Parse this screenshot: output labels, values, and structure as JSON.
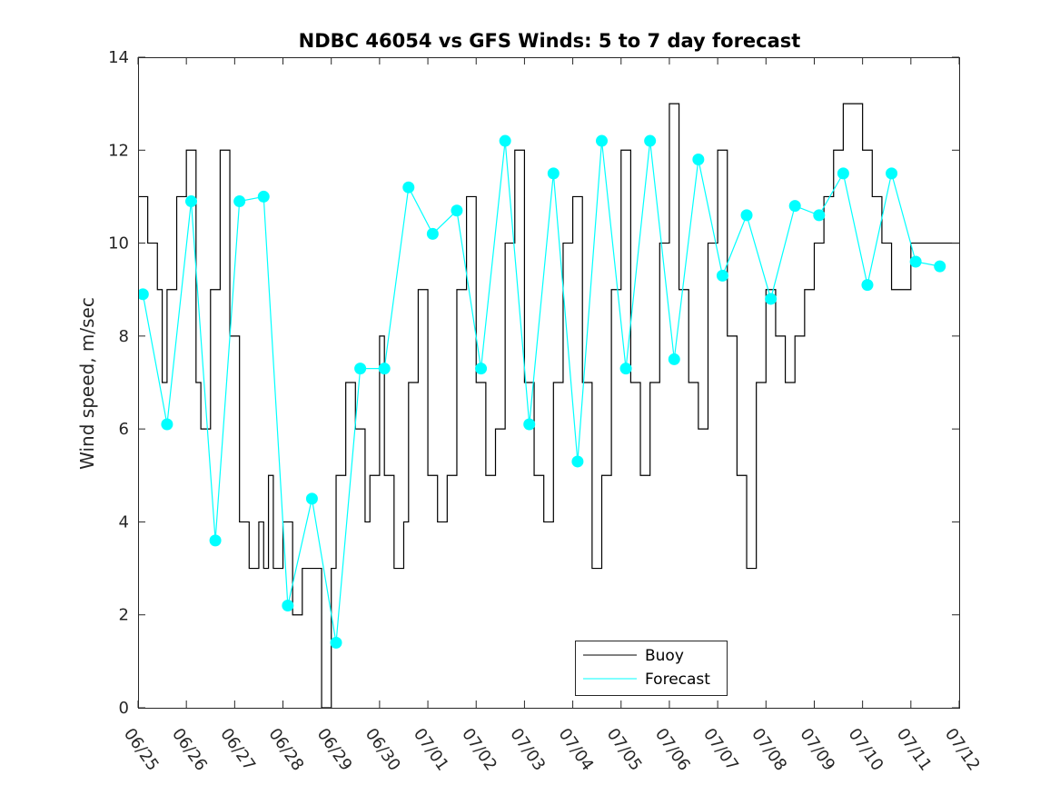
{
  "chart_data": {
    "type": "line",
    "title": "NDBC 46054 vs GFS Winds: 5 to 7 day forecast",
    "xlabel": "",
    "ylabel": "Wind speed, m/sec",
    "x_ticks": [
      "06/25",
      "06/26",
      "06/27",
      "06/28",
      "06/29",
      "06/30",
      "07/01",
      "07/02",
      "07/03",
      "07/04",
      "07/05",
      "07/06",
      "07/07",
      "07/08",
      "07/09",
      "07/10",
      "07/11",
      "07/12"
    ],
    "ylim": [
      0,
      14
    ],
    "y_ticks": [
      0,
      2,
      4,
      6,
      8,
      10,
      12,
      14
    ],
    "grid": false,
    "legend_position": "bottom-center",
    "series": [
      {
        "name": "Buoy",
        "color": "#000000",
        "x_days": [
          0,
          0.2,
          0.4,
          0.5,
          0.6,
          0.8,
          1.0,
          1.2,
          1.3,
          1.5,
          1.7,
          1.9,
          2.1,
          2.3,
          2.5,
          2.6,
          2.7,
          2.8,
          3.0,
          3.2,
          3.4,
          3.6,
          3.8,
          4.0,
          4.1,
          4.3,
          4.5,
          4.7,
          4.8,
          5.0,
          5.1,
          5.3,
          5.5,
          5.6,
          5.8,
          6.0,
          6.2,
          6.4,
          6.6,
          6.8,
          7.0,
          7.2,
          7.4,
          7.6,
          7.8,
          8.0,
          8.2,
          8.4,
          8.6,
          8.8,
          9.0,
          9.2,
          9.4,
          9.6,
          9.8,
          10.0,
          10.2,
          10.4,
          10.6,
          10.8,
          11.0,
          11.2,
          11.4,
          11.6,
          11.8,
          12.0,
          12.2,
          12.4,
          12.6,
          12.8,
          13.0,
          13.2,
          13.4,
          13.6,
          13.8,
          14.0,
          14.2,
          14.4,
          14.6,
          14.8,
          15.0,
          15.2,
          15.4,
          15.6,
          15.8,
          16.0,
          16.2,
          16.4,
          16.6,
          16.8,
          17.0
        ],
        "values": [
          11,
          10,
          9,
          7,
          9,
          11,
          12,
          7,
          6,
          9,
          12,
          8,
          4,
          3,
          4,
          3,
          5,
          3,
          4,
          2,
          3,
          3,
          0,
          3,
          5,
          7,
          6,
          4,
          5,
          8,
          5,
          3,
          4,
          7,
          9,
          5,
          4,
          5,
          9,
          11,
          7,
          5,
          6,
          10,
          12,
          7,
          5,
          4,
          7,
          10,
          11,
          7,
          3,
          5,
          9,
          12,
          7,
          5,
          7,
          10,
          13,
          9,
          7,
          6,
          10,
          12,
          8,
          5,
          3,
          7,
          9,
          8,
          7,
          8,
          9,
          10,
          11,
          12,
          13,
          13,
          12,
          11,
          10,
          9,
          9,
          10,
          10,
          10,
          10,
          10,
          10
        ],
        "notes": "Buoy trace is stepwise; values approximate wind speed at 1 m/s resolution"
      },
      {
        "name": "Forecast",
        "color": "#00ffff",
        "x_days": [
          0.1,
          0.6,
          1.1,
          1.6,
          2.1,
          2.6,
          3.1,
          3.6,
          4.1,
          4.6,
          5.1,
          5.6,
          6.1,
          6.6,
          7.1,
          7.6,
          8.1,
          8.6,
          9.1,
          9.6,
          10.1,
          10.6,
          11.1,
          11.6,
          12.1,
          12.6,
          13.1,
          13.6,
          14.1,
          14.6,
          15.1,
          15.6,
          16.1,
          16.6
        ],
        "values": [
          8.9,
          6.1,
          10.9,
          3.6,
          10.9,
          11.0,
          2.2,
          4.5,
          1.4,
          7.3,
          7.3,
          11.2,
          10.2,
          10.7,
          7.3,
          12.2,
          6.1,
          11.5,
          5.3,
          12.2,
          7.3,
          12.2,
          7.5,
          11.8,
          9.3,
          10.6,
          8.8,
          10.8,
          10.6,
          11.5,
          9.1,
          11.5,
          9.6,
          9.5
        ],
        "notes": "Forecast markers; multiple cyan forecast traces overlap"
      }
    ]
  }
}
